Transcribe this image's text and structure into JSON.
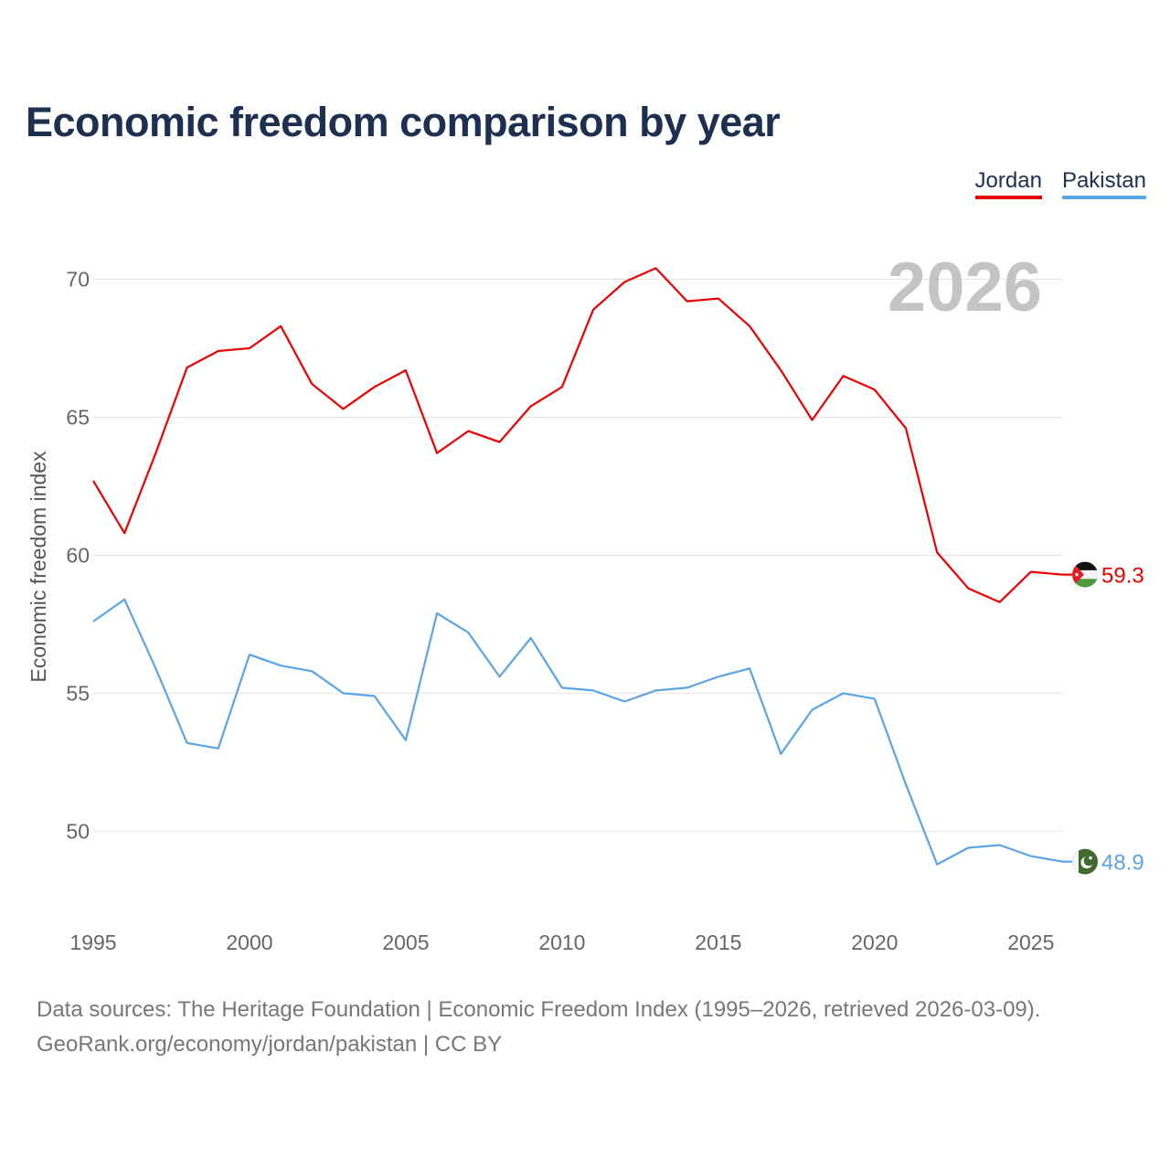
{
  "title": "Economic freedom comparison by year",
  "legend": [
    {
      "label": "Jordan",
      "color": "#ee0000"
    },
    {
      "label": "Pakistan",
      "color": "#5ba4e6"
    }
  ],
  "footer": {
    "line1": "Data sources: The Heritage Foundation | Economic Freedom Index (1995–2026, retrieved 2026-03-09).",
    "line2": "GeoRank.org/economy/jordan/pakistan | CC BY"
  },
  "chart_data": {
    "type": "line",
    "title": "Economic freedom comparison by year",
    "year_label": "2026",
    "ylabel": "Economic freedom index",
    "xlabel": "",
    "x": [
      1995,
      1996,
      1997,
      1998,
      1999,
      2000,
      2001,
      2002,
      2003,
      2004,
      2005,
      2006,
      2007,
      2008,
      2009,
      2010,
      2011,
      2012,
      2013,
      2014,
      2015,
      2016,
      2017,
      2018,
      2019,
      2020,
      2021,
      2022,
      2023,
      2024,
      2025,
      2026
    ],
    "xlim": [
      1995,
      2026
    ],
    "ylim": [
      47.0,
      72.5
    ],
    "x_ticks": [
      1995,
      2000,
      2005,
      2010,
      2015,
      2020,
      2025
    ],
    "y_ticks": [
      50,
      55,
      60,
      65,
      70
    ],
    "grid": true,
    "legend_position": "top-right",
    "series": [
      {
        "name": "Jordan",
        "color": "#ee0000",
        "end_label": "59.3",
        "flag": "jordan-flag",
        "values": [
          62.7,
          60.8,
          63.7,
          66.8,
          67.4,
          67.5,
          68.3,
          66.2,
          65.3,
          66.1,
          66.7,
          63.7,
          64.5,
          64.1,
          65.4,
          66.1,
          68.9,
          69.9,
          70.4,
          69.2,
          69.3,
          68.3,
          66.7,
          64.9,
          66.5,
          66.0,
          64.6,
          60.1,
          58.8,
          58.3,
          59.4,
          59.3
        ]
      },
      {
        "name": "Pakistan",
        "color": "#5ba4e6",
        "end_label": "48.9",
        "flag": "pakistan-flag",
        "values": [
          57.6,
          58.4,
          55.9,
          53.2,
          53.0,
          56.4,
          56.0,
          55.8,
          55.0,
          54.9,
          53.3,
          57.9,
          57.2,
          55.6,
          57.0,
          55.2,
          55.1,
          54.7,
          55.1,
          55.2,
          55.6,
          55.9,
          52.8,
          54.4,
          55.0,
          54.8,
          51.7,
          48.8,
          49.4,
          49.5,
          49.1,
          48.9
        ]
      }
    ]
  }
}
